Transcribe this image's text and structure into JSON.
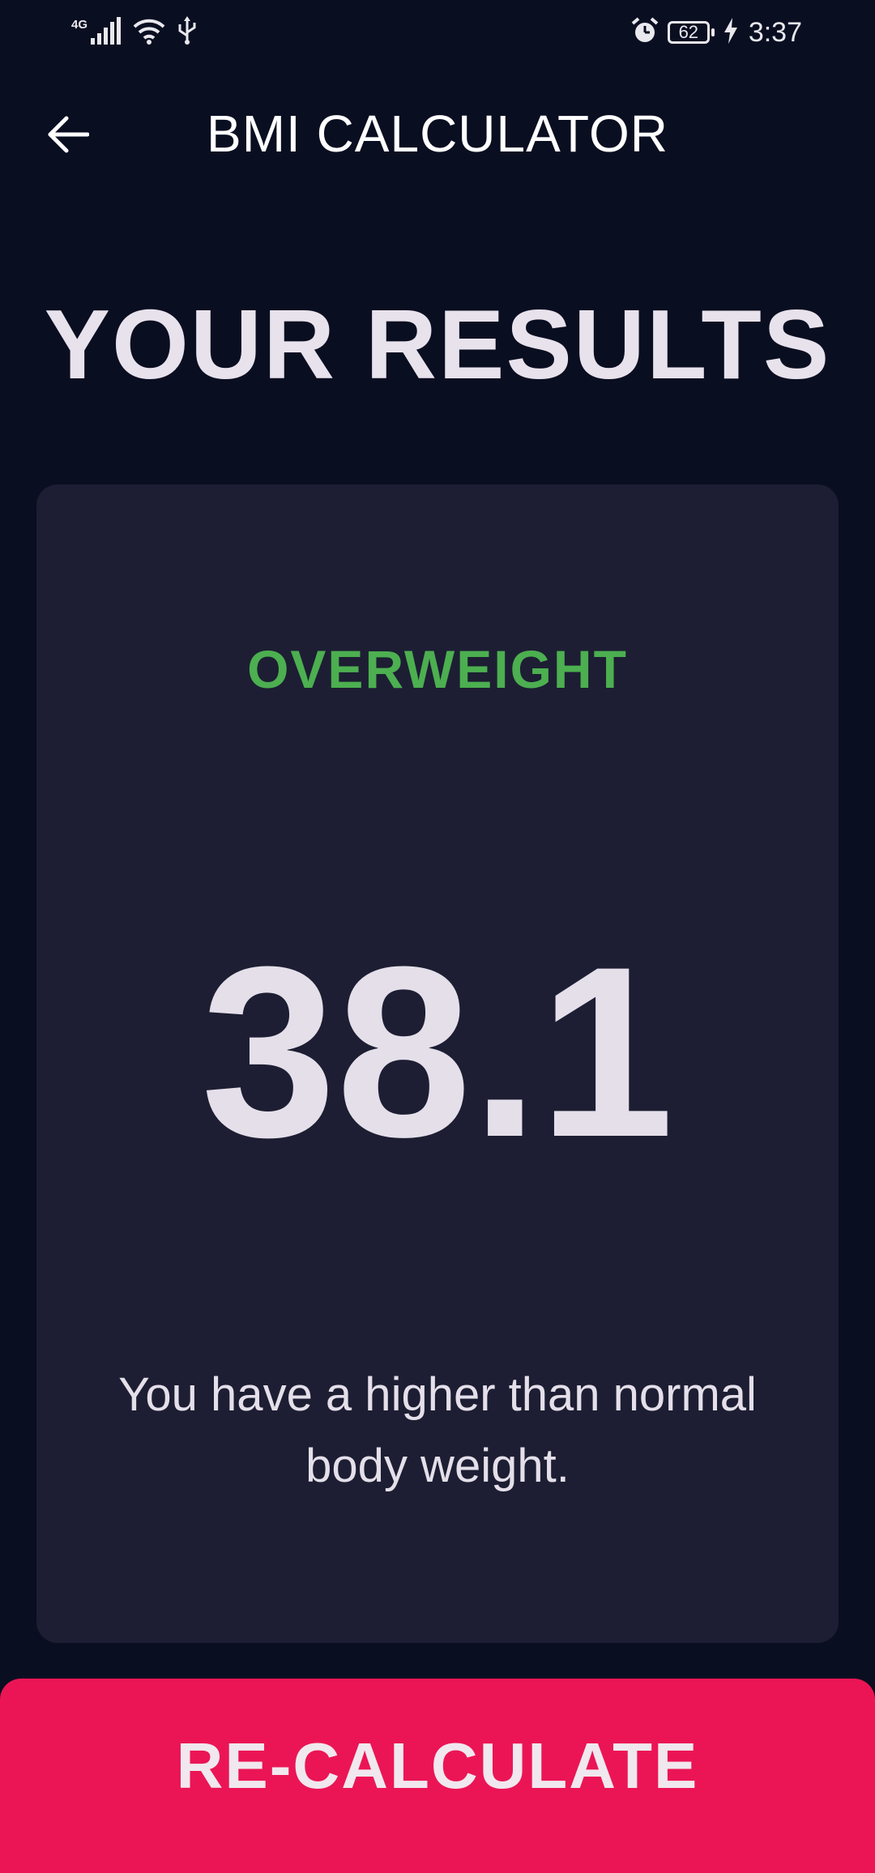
{
  "status_bar": {
    "network": "4G",
    "battery": "62",
    "time": "3:37",
    "icons": [
      "signal-icon",
      "wifi-icon",
      "usb-icon",
      "alarm-icon",
      "battery-icon",
      "charging-icon"
    ]
  },
  "app_bar": {
    "title": "BMI CALCULATOR",
    "back_icon": "arrow-left-icon"
  },
  "main": {
    "heading": "YOUR RESULTS",
    "result": {
      "status": "OVERWEIGHT",
      "status_color": "#4caf50",
      "bmi": "38.1",
      "interpretation": "You have a higher than normal body weight."
    }
  },
  "footer": {
    "button_label": "RE-CALCULATE",
    "button_color": "#eb1555"
  },
  "colors": {
    "background": "#0a0e21",
    "card": "#1d1e33"
  }
}
